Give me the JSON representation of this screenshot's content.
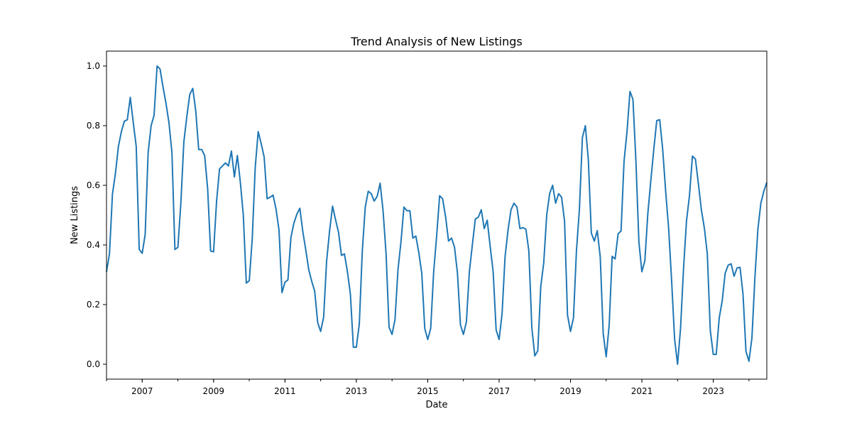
{
  "chart_data": {
    "type": "line",
    "title": "Trend Analysis of New Listings",
    "xlabel": "Date",
    "ylabel": "New Listings",
    "x_range": [
      "2006-01",
      "2024-07"
    ],
    "ylim": [
      -0.05,
      1.05
    ],
    "x_ticks": [
      {
        "label": "2007",
        "date": "2007-01"
      },
      {
        "label": "2009",
        "date": "2009-01"
      },
      {
        "label": "2011",
        "date": "2011-01"
      },
      {
        "label": "2013",
        "date": "2013-01"
      },
      {
        "label": "2015",
        "date": "2015-01"
      },
      {
        "label": "2017",
        "date": "2017-01"
      },
      {
        "label": "2019",
        "date": "2019-01"
      },
      {
        "label": "2021",
        "date": "2021-01"
      },
      {
        "label": "2023",
        "date": "2023-01"
      }
    ],
    "y_ticks": [
      {
        "label": "0.0",
        "value": 0.0
      },
      {
        "label": "0.2",
        "value": 0.2
      },
      {
        "label": "0.4",
        "value": 0.4
      },
      {
        "label": "0.6",
        "value": 0.6
      },
      {
        "label": "0.8",
        "value": 0.8
      },
      {
        "label": "1.0",
        "value": 1.0
      }
    ],
    "grid": false,
    "legend": "none",
    "series": [
      {
        "color": "#1f77b4",
        "x": [
          "2006-01",
          "2006-02",
          "2006-03",
          "2006-04",
          "2006-05",
          "2006-06",
          "2006-07",
          "2006-08",
          "2006-09",
          "2006-10",
          "2006-11",
          "2006-12",
          "2007-01",
          "2007-02",
          "2007-03",
          "2007-04",
          "2007-05",
          "2007-06",
          "2007-07",
          "2007-08",
          "2007-09",
          "2007-10",
          "2007-11",
          "2007-12",
          "2008-01",
          "2008-02",
          "2008-03",
          "2008-04",
          "2008-05",
          "2008-06",
          "2008-07",
          "2008-08",
          "2008-09",
          "2008-10",
          "2008-11",
          "2008-12",
          "2009-01",
          "2009-02",
          "2009-03",
          "2009-04",
          "2009-05",
          "2009-06",
          "2009-07",
          "2009-08",
          "2009-09",
          "2009-10",
          "2009-11",
          "2009-12",
          "2010-01",
          "2010-02",
          "2010-03",
          "2010-04",
          "2010-05",
          "2010-06",
          "2010-07",
          "2010-08",
          "2010-09",
          "2010-10",
          "2010-11",
          "2010-12",
          "2011-01",
          "2011-02",
          "2011-03",
          "2011-04",
          "2011-05",
          "2011-06",
          "2011-07",
          "2011-08",
          "2011-09",
          "2011-10",
          "2011-11",
          "2011-12",
          "2012-01",
          "2012-02",
          "2012-03",
          "2012-04",
          "2012-05",
          "2012-06",
          "2012-07",
          "2012-08",
          "2012-09",
          "2012-10",
          "2012-11",
          "2012-12",
          "2013-01",
          "2013-02",
          "2013-03",
          "2013-04",
          "2013-05",
          "2013-06",
          "2013-07",
          "2013-08",
          "2013-09",
          "2013-10",
          "2013-11",
          "2013-12",
          "2014-01",
          "2014-02",
          "2014-03",
          "2014-04",
          "2014-05",
          "2014-06",
          "2014-07",
          "2014-08",
          "2014-09",
          "2014-10",
          "2014-11",
          "2014-12",
          "2015-01",
          "2015-02",
          "2015-03",
          "2015-04",
          "2015-05",
          "2015-06",
          "2015-07",
          "2015-08",
          "2015-09",
          "2015-10",
          "2015-11",
          "2015-12",
          "2016-01",
          "2016-02",
          "2016-03",
          "2016-04",
          "2016-05",
          "2016-06",
          "2016-07",
          "2016-08",
          "2016-09",
          "2016-10",
          "2016-11",
          "2016-12",
          "2017-01",
          "2017-02",
          "2017-03",
          "2017-04",
          "2017-05",
          "2017-06",
          "2017-07",
          "2017-08",
          "2017-09",
          "2017-10",
          "2017-11",
          "2017-12",
          "2018-01",
          "2018-02",
          "2018-03",
          "2018-04",
          "2018-05",
          "2018-06",
          "2018-07",
          "2018-08",
          "2018-09",
          "2018-10",
          "2018-11",
          "2018-12",
          "2019-01",
          "2019-02",
          "2019-03",
          "2019-04",
          "2019-05",
          "2019-06",
          "2019-07",
          "2019-08",
          "2019-09",
          "2019-10",
          "2019-11",
          "2019-12",
          "2020-01",
          "2020-02",
          "2020-03",
          "2020-04",
          "2020-05",
          "2020-06",
          "2020-07",
          "2020-08",
          "2020-09",
          "2020-10",
          "2020-11",
          "2020-12",
          "2021-01",
          "2021-02",
          "2021-03",
          "2021-04",
          "2021-05",
          "2021-06",
          "2021-07",
          "2021-08",
          "2021-09",
          "2021-10",
          "2021-11",
          "2021-12",
          "2022-01",
          "2022-02",
          "2022-03",
          "2022-04",
          "2022-05",
          "2022-06",
          "2022-07",
          "2022-08",
          "2022-09",
          "2022-10",
          "2022-11",
          "2022-12",
          "2023-01",
          "2023-02",
          "2023-03",
          "2023-04",
          "2023-05",
          "2023-06",
          "2023-07",
          "2023-08",
          "2023-09",
          "2023-10",
          "2023-11",
          "2023-12",
          "2024-01",
          "2024-02",
          "2024-03",
          "2024-04",
          "2024-05",
          "2024-06",
          "2024-07"
        ],
        "y": [
          0.31,
          0.37,
          0.57,
          0.64,
          0.73,
          0.78,
          0.815,
          0.82,
          0.895,
          0.81,
          0.73,
          0.385,
          0.372,
          0.435,
          0.71,
          0.8,
          0.835,
          1.0,
          0.99,
          0.93,
          0.875,
          0.81,
          0.71,
          0.385,
          0.392,
          0.54,
          0.745,
          0.83,
          0.905,
          0.925,
          0.85,
          0.72,
          0.72,
          0.7,
          0.59,
          0.38,
          0.377,
          0.545,
          0.655,
          0.665,
          0.675,
          0.665,
          0.715,
          0.628,
          0.7,
          0.61,
          0.5,
          0.272,
          0.28,
          0.42,
          0.66,
          0.78,
          0.74,
          0.695,
          0.555,
          0.56,
          0.567,
          0.52,
          0.45,
          0.24,
          0.275,
          0.283,
          0.425,
          0.473,
          0.503,
          0.523,
          0.445,
          0.383,
          0.317,
          0.278,
          0.245,
          0.14,
          0.11,
          0.158,
          0.345,
          0.447,
          0.53,
          0.485,
          0.443,
          0.365,
          0.37,
          0.31,
          0.235,
          0.057,
          0.057,
          0.135,
          0.38,
          0.527,
          0.58,
          0.572,
          0.547,
          0.563,
          0.607,
          0.513,
          0.37,
          0.124,
          0.1,
          0.15,
          0.317,
          0.41,
          0.527,
          0.515,
          0.515,
          0.423,
          0.43,
          0.375,
          0.305,
          0.12,
          0.083,
          0.12,
          0.31,
          0.43,
          0.565,
          0.555,
          0.495,
          0.413,
          0.423,
          0.393,
          0.305,
          0.132,
          0.1,
          0.142,
          0.31,
          0.4,
          0.487,
          0.493,
          0.518,
          0.455,
          0.483,
          0.395,
          0.31,
          0.115,
          0.083,
          0.17,
          0.36,
          0.45,
          0.518,
          0.54,
          0.527,
          0.455,
          0.458,
          0.453,
          0.38,
          0.123,
          0.028,
          0.045,
          0.26,
          0.34,
          0.5,
          0.573,
          0.6,
          0.54,
          0.572,
          0.56,
          0.48,
          0.165,
          0.11,
          0.155,
          0.38,
          0.52,
          0.76,
          0.8,
          0.685,
          0.44,
          0.413,
          0.448,
          0.36,
          0.103,
          0.025,
          0.13,
          0.362,
          0.353,
          0.437,
          0.447,
          0.68,
          0.78,
          0.915,
          0.888,
          0.68,
          0.41,
          0.31,
          0.347,
          0.505,
          0.615,
          0.72,
          0.817,
          0.82,
          0.72,
          0.58,
          0.455,
          0.28,
          0.085,
          0.0,
          0.12,
          0.32,
          0.48,
          0.565,
          0.698,
          0.688,
          0.605,
          0.518,
          0.457,
          0.37,
          0.113,
          0.033,
          0.033,
          0.155,
          0.212,
          0.305,
          0.332,
          0.337,
          0.295,
          0.323,
          0.325,
          0.235,
          0.043,
          0.01,
          0.088,
          0.29,
          0.452,
          0.54,
          0.58,
          0.61
        ]
      }
    ]
  }
}
